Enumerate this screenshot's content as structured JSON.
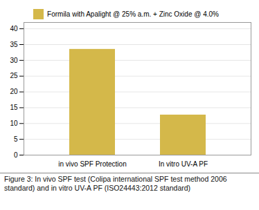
{
  "chart_data": {
    "type": "bar",
    "categories": [
      "in vivo SPF Protection",
      "In vitro UV-A PF"
    ],
    "series": [
      {
        "name": "Formila with Apalight @ 25% a.m. + Zinc Oxide @ 4.0%",
        "color": "#D4B84A",
        "values": [
          33.5,
          12.7
        ]
      }
    ],
    "ylim": [
      0,
      42
    ],
    "yticks": [
      0,
      5,
      10,
      15,
      20,
      25,
      30,
      35,
      40
    ],
    "grid": true,
    "legend": "top",
    "caption": "Figure 3: In vivo SPF test (Colipa international SPF test method 2006 standard) and in vitro UV-A PF (ISO24443:2012 standard)"
  }
}
